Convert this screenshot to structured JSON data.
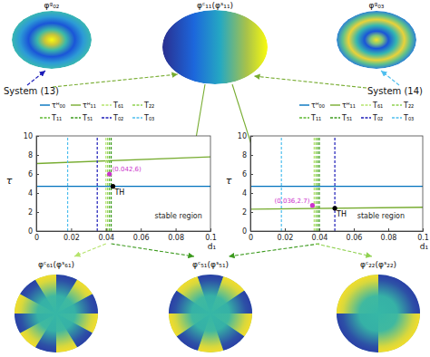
{
  "chart_data": [
    {
      "type": "line",
      "title": "System (13)",
      "x_label": "d₁",
      "y_label": "τ",
      "xlim": [
        0,
        0.1
      ],
      "ylim": [
        0,
        10
      ],
      "xticks": [
        0,
        0.02,
        0.04,
        0.06,
        0.08,
        0.1
      ],
      "yticks": [
        0,
        2,
        4,
        6,
        8,
        10
      ],
      "legend": "top",
      "series": [
        {
          "name": "τᴴ₀₀",
          "color": "#0072bd",
          "line_style": "solid",
          "x": [
            0,
            0.1
          ],
          "values": [
            4.7,
            4.7
          ]
        },
        {
          "name": "τᴴ₁₁",
          "color": "#77ac30",
          "line_style": "solid",
          "x": [
            0,
            0.1
          ],
          "values": [
            7.1,
            7.8
          ]
        },
        {
          "name": "T₆₁",
          "color": "#b5e36b",
          "line_style": "dashed",
          "x": [
            0.04,
            0.04
          ],
          "values": [
            0,
            10
          ]
        },
        {
          "name": "T₂₂",
          "color": "#8fd14f",
          "line_style": "dashed",
          "x": [
            0.041,
            0.041
          ],
          "values": [
            0,
            10
          ]
        },
        {
          "name": "T₁₁",
          "color": "#5cb82f",
          "line_style": "dashed",
          "x": [
            0.042,
            0.042
          ],
          "values": [
            0,
            10
          ]
        },
        {
          "name": "T₅₁",
          "color": "#3c9a1e",
          "line_style": "dashed",
          "x": [
            0.043,
            0.043
          ],
          "values": [
            0,
            10
          ]
        },
        {
          "name": "T₀₂",
          "color": "#1c1cb8",
          "line_style": "dashed",
          "x": [
            0.035,
            0.035
          ],
          "values": [
            0,
            10
          ]
        },
        {
          "name": "T₀₃",
          "color": "#4dbeee",
          "line_style": "dashed",
          "x": [
            0.018,
            0.018
          ],
          "values": [
            0,
            10
          ]
        }
      ],
      "annotations": [
        {
          "text": "(0.042,6)",
          "x": 0.042,
          "y": 6,
          "color": "#cc33cc",
          "marker": "circle"
        },
        {
          "text": "TH",
          "x": 0.044,
          "y": 4.7,
          "color": "#000000",
          "marker": "circle"
        },
        {
          "text": "stable region",
          "x": 0.068,
          "y": 1.3
        }
      ]
    },
    {
      "type": "line",
      "title": "System (14)",
      "x_label": "d₁",
      "y_label": "τ",
      "xlim": [
        0,
        0.1
      ],
      "ylim": [
        0,
        10
      ],
      "xticks": [
        0,
        0.02,
        0.04,
        0.06,
        0.08,
        0.1
      ],
      "yticks": [
        0,
        2,
        4,
        6,
        8,
        10
      ],
      "legend": "top",
      "series": [
        {
          "name": "τᴴ₀₀",
          "color": "#0072bd",
          "line_style": "solid",
          "x": [
            0,
            0.1
          ],
          "values": [
            4.7,
            4.7
          ]
        },
        {
          "name": "τᴴ₁₁",
          "color": "#77ac30",
          "line_style": "solid",
          "x": [
            0,
            0.1
          ],
          "values": [
            2.3,
            2.5
          ]
        },
        {
          "name": "T₆₁",
          "color": "#b5e36b",
          "line_style": "dashed",
          "x": [
            0.037,
            0.037
          ],
          "values": [
            0,
            10
          ]
        },
        {
          "name": "T₂₂",
          "color": "#8fd14f",
          "line_style": "dashed",
          "x": [
            0.038,
            0.038
          ],
          "values": [
            0,
            10
          ]
        },
        {
          "name": "T₁₁",
          "color": "#5cb82f",
          "line_style": "dashed",
          "x": [
            0.039,
            0.039
          ],
          "values": [
            0,
            10
          ]
        },
        {
          "name": "T₅₁",
          "color": "#3c9a1e",
          "line_style": "dashed",
          "x": [
            0.04,
            0.04
          ],
          "values": [
            0,
            10
          ]
        },
        {
          "name": "T₀₂",
          "color": "#1c1cb8",
          "line_style": "dashed",
          "x": [
            0.049,
            0.049
          ],
          "values": [
            0,
            10
          ]
        },
        {
          "name": "T₀₃",
          "color": "#4dbeee",
          "line_style": "dashed",
          "x": [
            0.018,
            0.018
          ],
          "values": [
            0,
            10
          ]
        }
      ],
      "annotations": [
        {
          "text": "(0.036,2.7)",
          "x": 0.036,
          "y": 2.7,
          "color": "#cc33cc",
          "marker": "circle"
        },
        {
          "text": "TH",
          "x": 0.049,
          "y": 2.4,
          "color": "#000000",
          "marker": "circle"
        },
        {
          "text": "stable region",
          "x": 0.062,
          "y": 1.3
        }
      ]
    }
  ],
  "modes": [
    {
      "label": "φᵍ₀₂"
    },
    {
      "label": "φᶜ₁₁(φˢ₁₁)"
    },
    {
      "label": "φᵍ₀₃"
    },
    {
      "label": "φᶜ₆₁(φˢ₆₁)"
    },
    {
      "label": "φᶜ₅₁(φˢ₅₁)"
    },
    {
      "label": "φᶜ₂₂(φˢ₂₂)"
    }
  ]
}
